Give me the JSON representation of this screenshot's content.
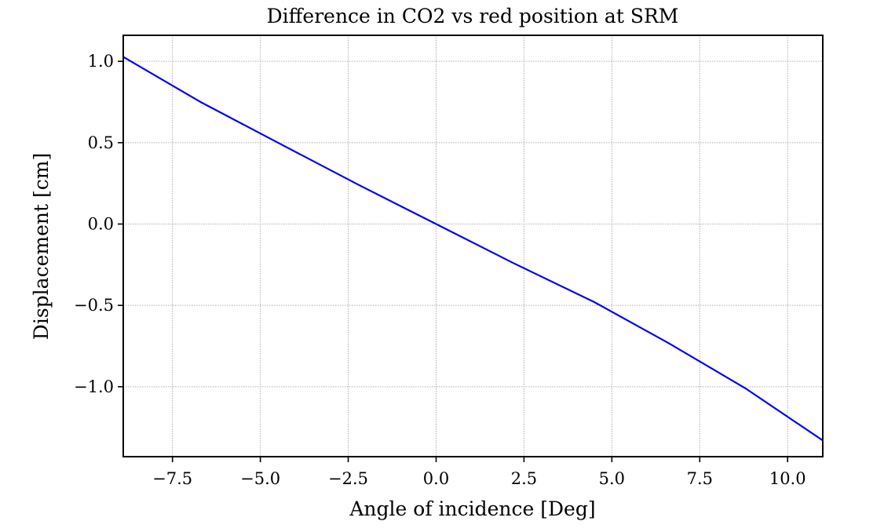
{
  "chart_data": {
    "type": "line",
    "title": "Difference in CO2 vs red position at SRM",
    "xlabel": "Angle of incidence [Deg]",
    "ylabel": "Displacement [cm]",
    "xlim": [
      -8.9,
      11.0
    ],
    "ylim": [
      -1.43,
      1.16
    ],
    "grid": true,
    "xticks": [
      -7.5,
      -5.0,
      -2.5,
      0.0,
      2.5,
      5.0,
      7.5,
      10.0
    ],
    "xtick_labels": [
      "−7.5",
      "−5.0",
      "−2.5",
      "0.0",
      "2.5",
      "5.0",
      "7.5",
      "10.0"
    ],
    "yticks": [
      1.0,
      0.5,
      0.0,
      -0.5,
      -1.0
    ],
    "ytick_labels": [
      "1.0",
      "0.5",
      "0.0",
      "−0.5",
      "−1.0"
    ],
    "series": [
      {
        "name": "displacement",
        "color": "#0000ff",
        "x": [
          -9.0,
          -6.7,
          -4.5,
          -2.2,
          0.0,
          2.2,
          4.5,
          6.6,
          8.8,
          11.0
        ],
        "y": [
          1.04,
          0.75,
          0.5,
          0.24,
          0.0,
          -0.24,
          -0.48,
          -0.73,
          -1.01,
          -1.33
        ]
      }
    ]
  }
}
